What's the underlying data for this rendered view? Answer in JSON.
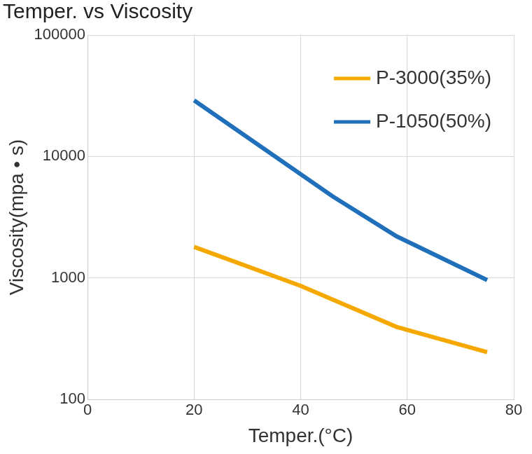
{
  "chart_data": {
    "type": "line",
    "title": "Temper. vs Viscosity",
    "x_label": "Temper.(°C)",
    "y_label": "Viscosity(mpa • s)",
    "series": [
      {
        "name": "P-3000(35%)",
        "color": "#f5a800",
        "x": [
          20,
          40,
          58,
          75
        ],
        "values": [
          1800,
          860,
          395,
          245
        ]
      },
      {
        "name": "P-1050(50%)",
        "color": "#1f6fba",
        "x": [
          20,
          46,
          58,
          75
        ],
        "values": [
          29000,
          4700,
          2200,
          960
        ]
      }
    ],
    "xlim": [
      0,
      80
    ],
    "xticks": [
      0,
      20,
      40,
      60,
      80
    ],
    "ylim": [
      100,
      100000
    ],
    "yticks": [
      100,
      1000,
      10000,
      100000
    ],
    "log": "y",
    "grid": true,
    "legend": "upper right"
  }
}
